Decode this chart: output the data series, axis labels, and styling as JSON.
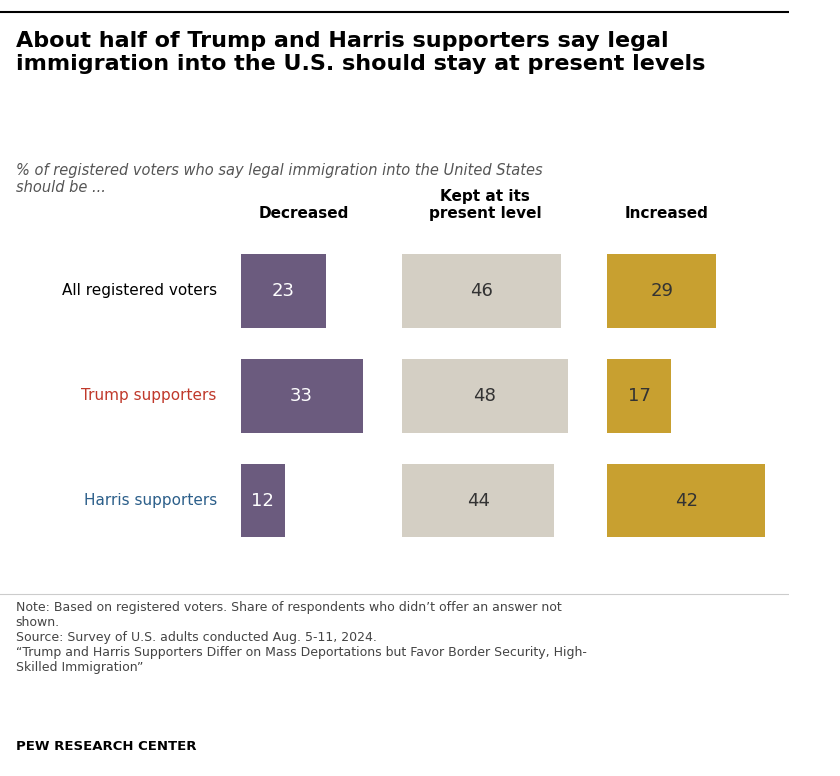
{
  "title": "About half of Trump and Harris supporters say legal\nimmigration into the U.S. should stay at present levels",
  "subtitle": "% of registered voters who say legal immigration into the United States\nshould be ...",
  "categories": [
    "All registered voters",
    "Trump supporters",
    "Harris supporters"
  ],
  "category_colors": [
    "black",
    "#c0392b",
    "#2c5f8a"
  ],
  "columns": [
    "Decreased",
    "Kept at its\npresent level",
    "Increased"
  ],
  "values": [
    [
      23,
      46,
      29
    ],
    [
      33,
      48,
      17
    ],
    [
      12,
      44,
      42
    ]
  ],
  "bar_colors": [
    "#6b5b7e",
    "#d4cfc4",
    "#c8a030"
  ],
  "bar_text_colors": [
    "white",
    "#333333",
    "#333333"
  ],
  "note": "Note: Based on registered voters. Share of respondents who didn’t offer an answer not\nshown.\nSource: Survey of U.S. adults conducted Aug. 5-11, 2024.\n“Trump and Harris Supporters Differ on Mass Deportations but Favor Border Security, High-\nSkilled Immigration”",
  "source_label": "PEW RESEARCH CENTER",
  "background_color": "#ffffff",
  "col_header_fontsize": 11,
  "row_label_fontsize": 11,
  "value_fontsize": 13,
  "note_fontsize": 9
}
